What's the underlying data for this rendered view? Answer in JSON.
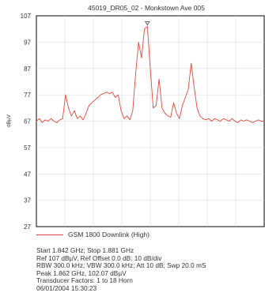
{
  "chart_data": {
    "type": "line",
    "title": "45019_DR05_02 - Monkstown Ave 005",
    "ylabel": "dBµV",
    "xlabel": "",
    "ylim": [
      27,
      107
    ],
    "yticks": [
      107,
      97,
      87,
      77,
      67,
      57,
      47,
      37,
      27
    ],
    "xlim": [
      1.842,
      1.881
    ],
    "grid": true,
    "legend_position": "bottom",
    "series": [
      {
        "name": "GSM 1800 Downlink (High)",
        "color": "#e8453c",
        "x": [
          1.842,
          1.8425,
          1.843,
          1.8435,
          1.844,
          1.8445,
          1.845,
          1.8455,
          1.846,
          1.8465,
          1.847,
          1.8475,
          1.848,
          1.8485,
          1.849,
          1.8495,
          1.85,
          1.8505,
          1.851,
          1.8515,
          1.852,
          1.8525,
          1.853,
          1.8535,
          1.854,
          1.8545,
          1.855,
          1.8555,
          1.856,
          1.8565,
          1.857,
          1.8575,
          1.858,
          1.8585,
          1.859,
          1.8595,
          1.86,
          1.8605,
          1.861,
          1.8615,
          1.862,
          1.8625,
          1.863,
          1.8635,
          1.864,
          1.8645,
          1.865,
          1.8655,
          1.866,
          1.8665,
          1.867,
          1.8675,
          1.868,
          1.8685,
          1.869,
          1.8695,
          1.87,
          1.8705,
          1.871,
          1.8715,
          1.872,
          1.8725,
          1.873,
          1.8735,
          1.874,
          1.8745,
          1.875,
          1.8755,
          1.876,
          1.8765,
          1.877,
          1.8775,
          1.878,
          1.8785,
          1.879,
          1.8795,
          1.88,
          1.8805,
          1.881
        ],
        "y": [
          67,
          68,
          66.5,
          67.5,
          67,
          68,
          67,
          66.5,
          67.5,
          68,
          77,
          72,
          69,
          71,
          68,
          69,
          67.5,
          70,
          73,
          74,
          75,
          76,
          77,
          77.5,
          78,
          77.5,
          78,
          76,
          77,
          71,
          68,
          69,
          67.5,
          71,
          85,
          97,
          91,
          102,
          103,
          87,
          72,
          73,
          83,
          72,
          70,
          69,
          68.5,
          74,
          70,
          68,
          73,
          76,
          79,
          89,
          80,
          72,
          69,
          68,
          67.5,
          68,
          67,
          68,
          67.5,
          67,
          68,
          67.5,
          67,
          68,
          67,
          66.5,
          67.5,
          67,
          67.5,
          67,
          66.5,
          67,
          67.5,
          67,
          67
        ]
      }
    ],
    "annotations": [
      "Peak marker (▽) at 1.862 GHz, 102.07 dBµV"
    ]
  },
  "legend": {
    "label": "GSM 1800 Downlink (High)"
  },
  "info": {
    "line1": "Start 1.842 GHz; Stop 1.881 GHz",
    "line2": "Ref 107 dBµV, Ref Offset 0.0 dB; 10 dB/div",
    "line3": "RBW 300.0 kHz; VBW 300.0 kHz; Att 10 dB; Swp 20.0 mS",
    "line4": "Peak 1.862 GHz, 102.07 dBµV",
    "line5": "Transducer Factors: 1 to 18 Horn",
    "line6": "06/01/2004 15:30:23"
  }
}
